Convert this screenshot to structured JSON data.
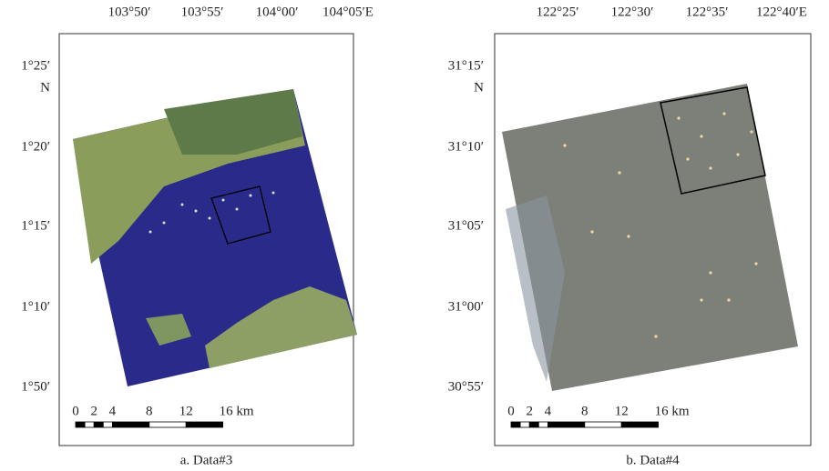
{
  "panels": [
    {
      "lon_labels": [
        "103°50′",
        "103°55′",
        "104°00′",
        "104°05′E"
      ],
      "lat_labels": [
        "1°25′",
        "N",
        "1°20′",
        "1°15′",
        "1°10′",
        "1°50′"
      ],
      "scale_labels": [
        "0",
        "2",
        "4",
        "8",
        "12",
        "16 km"
      ],
      "caption": "a. Data#3"
    },
    {
      "lon_labels": [
        "122°25′",
        "122°30′",
        "122°35′",
        "122°40′E"
      ],
      "lat_labels": [
        "31°15′",
        "N",
        "31°10′",
        "31°05′",
        "31°00′",
        "30°55′"
      ],
      "scale_labels": [
        "0",
        "2",
        "4",
        "8",
        "12",
        "16 km"
      ],
      "caption": "b. Data#4"
    }
  ]
}
